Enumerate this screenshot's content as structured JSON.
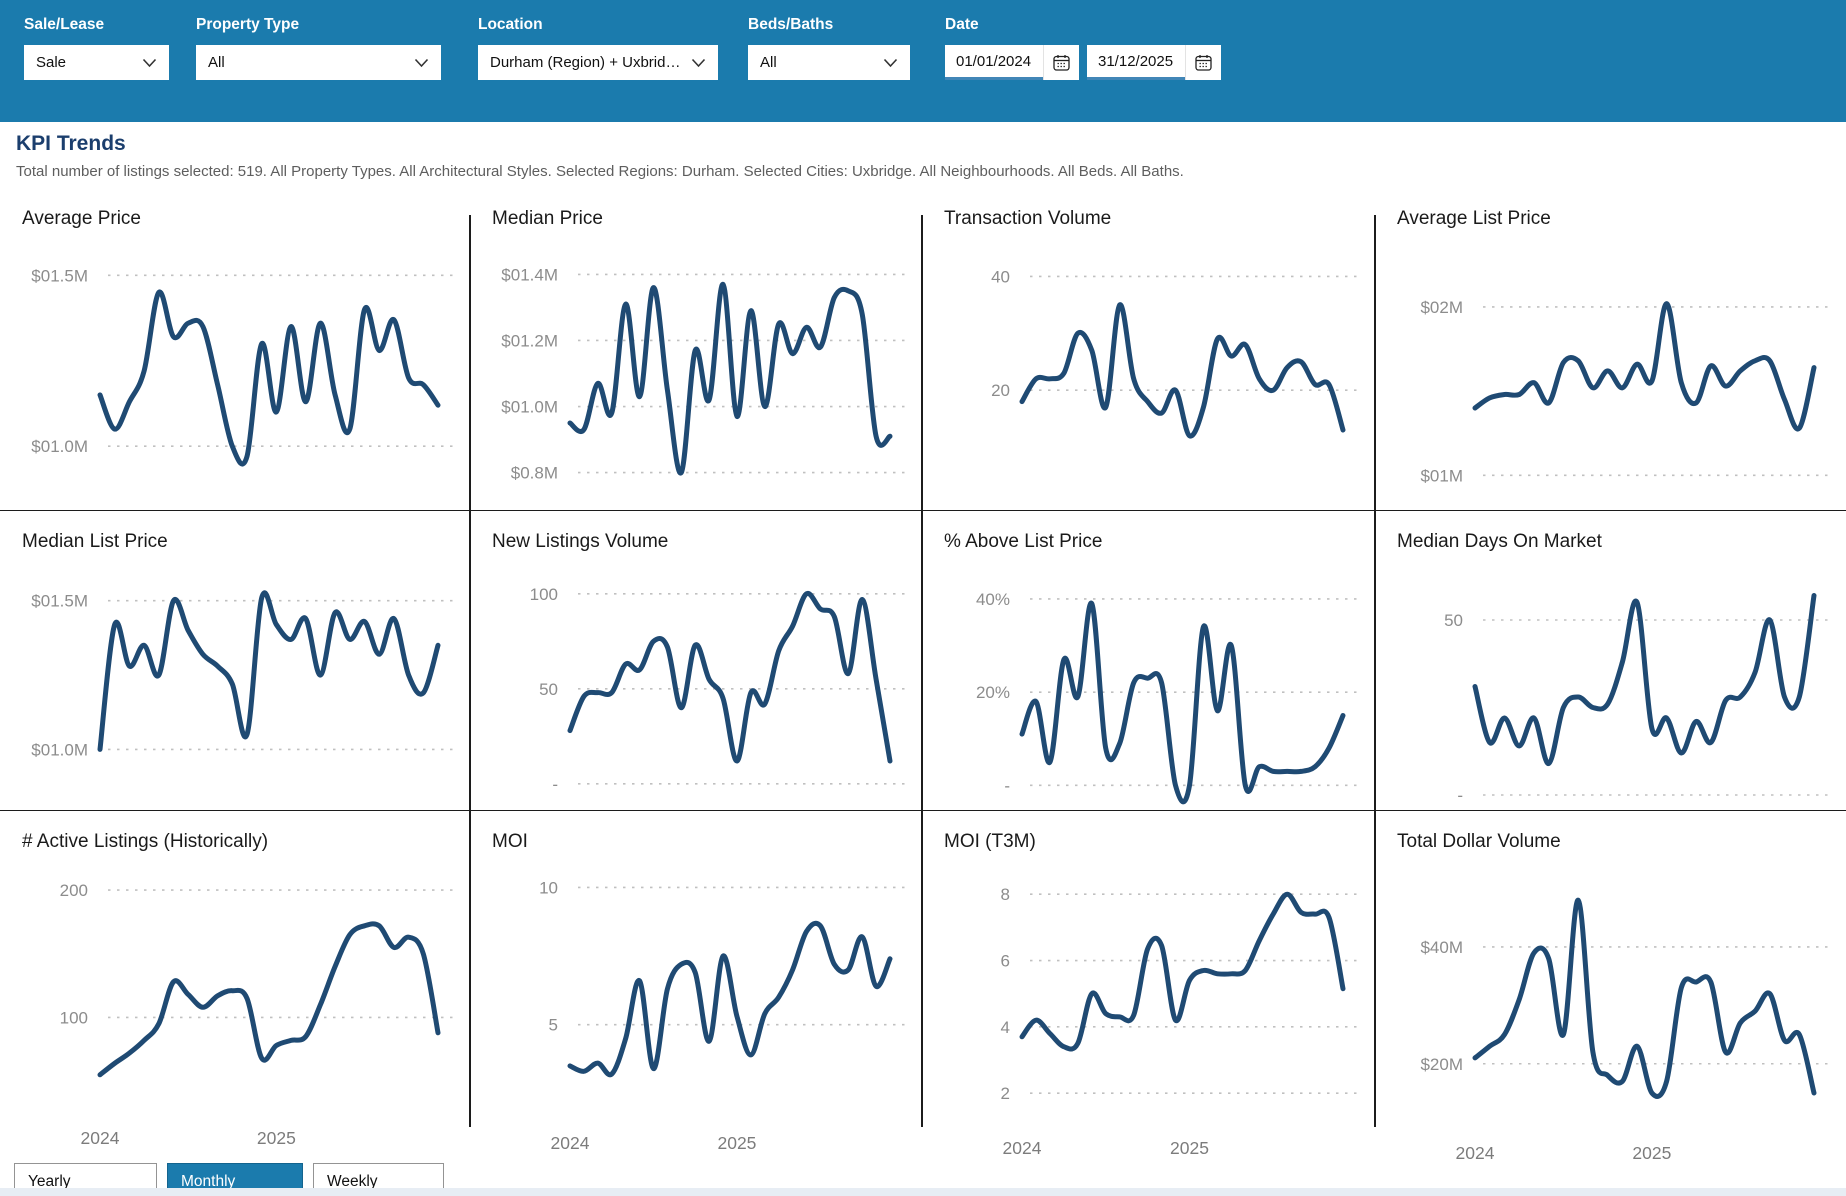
{
  "filters": {
    "sale_lease": {
      "label": "Sale/Lease",
      "value": "Sale"
    },
    "property_type": {
      "label": "Property Type",
      "value": "All"
    },
    "location": {
      "label": "Location",
      "value": "Durham (Region) + Uxbridg…"
    },
    "beds_baths": {
      "label": "Beds/Baths",
      "value": "All"
    },
    "date": {
      "label": "Date",
      "start": "01/01/2024",
      "end": "31/12/2025"
    }
  },
  "section": {
    "title": "KPI Trends",
    "subtitle": "Total number of listings selected: 519. All Property Types. All Architectural Styles. Selected Regions: Durham. Selected Cities: Uxbridge. All Neighbourhoods. All Beds. All Baths."
  },
  "period_toggle": {
    "options": [
      "Yearly",
      "Monthly",
      "Weekly"
    ],
    "selected": "Monthly"
  },
  "colors": {
    "header_bg": "#1b7bad",
    "accent": "#1b7bad",
    "line": "#1f4a73",
    "title_text": "#1b3e6d",
    "grid_dot": "#c0c0c0",
    "tick_text": "#8c8c8c",
    "axis_text": "#7c7c7c"
  },
  "chart_data": [
    {
      "type": "line",
      "title": "Average Price",
      "frequency": "monthly",
      "x_start": "2024-01",
      "x_end": "2025-12",
      "ylim": [
        0.86,
        1.58
      ],
      "yticks": [
        {
          "label": "$01.5M",
          "value": 1.5
        },
        {
          "label": "$01.0M",
          "value": 1.0
        }
      ],
      "values": [
        1.15,
        1.05,
        1.13,
        1.22,
        1.45,
        1.32,
        1.36,
        1.35,
        1.18,
        1.0,
        0.97,
        1.3,
        1.1,
        1.35,
        1.13,
        1.36,
        1.15,
        1.05,
        1.4,
        1.28,
        1.37,
        1.2,
        1.18,
        1.12
      ]
    },
    {
      "type": "line",
      "title": "Median Price",
      "frequency": "monthly",
      "x_start": "2024-01",
      "x_end": "2025-12",
      "ylim": [
        0.72,
        1.48
      ],
      "yticks": [
        {
          "label": "$01.4M",
          "value": 1.4
        },
        {
          "label": "$01.2M",
          "value": 1.2
        },
        {
          "label": "$01.0M",
          "value": 1.0
        },
        {
          "label": "$0.8M",
          "value": 0.8
        }
      ],
      "values": [
        0.95,
        0.93,
        1.07,
        0.98,
        1.31,
        1.03,
        1.36,
        1.05,
        0.8,
        1.17,
        1.02,
        1.37,
        0.97,
        1.29,
        1.0,
        1.25,
        1.16,
        1.24,
        1.18,
        1.33,
        1.35,
        1.28,
        0.91,
        0.91
      ]
    },
    {
      "type": "line",
      "title": "Transaction Volume",
      "frequency": "monthly",
      "x_start": "2024-01",
      "x_end": "2025-12",
      "ylim": [
        0,
        45
      ],
      "yticks": [
        {
          "label": "40",
          "value": 40
        },
        {
          "label": "20",
          "value": 20
        }
      ],
      "values": [
        18,
        22,
        22,
        23,
        30,
        27,
        17,
        35,
        22,
        18,
        16,
        20,
        12,
        17,
        29,
        26,
        28,
        22,
        20,
        24,
        25,
        21,
        21,
        13
      ]
    },
    {
      "type": "line",
      "title": "Average List Price",
      "frequency": "monthly",
      "x_start": "2024-01",
      "x_end": "2025-12",
      "ylim": [
        0.8,
        2.35
      ],
      "yticks": [
        {
          "label": "$02M",
          "value": 2
        },
        {
          "label": "$01M",
          "value": 1
        }
      ],
      "values": [
        1.4,
        1.46,
        1.48,
        1.48,
        1.55,
        1.43,
        1.67,
        1.68,
        1.52,
        1.62,
        1.52,
        1.66,
        1.56,
        2.02,
        1.55,
        1.43,
        1.65,
        1.53,
        1.62,
        1.68,
        1.68,
        1.45,
        1.28,
        1.64
      ]
    },
    {
      "type": "line",
      "title": "Median List Price",
      "frequency": "monthly",
      "x_start": "2024-01",
      "x_end": "2025-12",
      "ylim": [
        0.85,
        1.6
      ],
      "yticks": [
        {
          "label": "$01.5M",
          "value": 1.5
        },
        {
          "label": "$01.0M",
          "value": 1.0
        }
      ],
      "values": [
        1.0,
        1.42,
        1.28,
        1.35,
        1.25,
        1.5,
        1.4,
        1.32,
        1.28,
        1.22,
        1.05,
        1.51,
        1.42,
        1.37,
        1.44,
        1.25,
        1.46,
        1.37,
        1.43,
        1.32,
        1.44,
        1.25,
        1.19,
        1.35
      ]
    },
    {
      "type": "line",
      "title": "New Listings Volume",
      "frequency": "monthly",
      "x_start": "2024-01",
      "x_end": "2025-12",
      "ylim": [
        -8,
        112
      ],
      "yticks": [
        {
          "label": "100",
          "value": 100
        },
        {
          "label": "50",
          "value": 50
        },
        {
          "label": "-",
          "value": 0
        }
      ],
      "values": [
        28,
        46,
        48,
        48,
        63,
        60,
        75,
        72,
        40,
        73,
        55,
        45,
        12,
        48,
        42,
        70,
        83,
        100,
        92,
        88,
        58,
        97,
        55,
        12
      ]
    },
    {
      "type": "line",
      "title": "% Above List Price",
      "frequency": "monthly",
      "x_start": "2024-01",
      "x_end": "2025-12",
      "ylim": [
        -4,
        46
      ],
      "yticks": [
        {
          "label": "40%",
          "value": 40
        },
        {
          "label": "20%",
          "value": 20
        },
        {
          "label": "-",
          "value": 0
        }
      ],
      "values": [
        11,
        18,
        5,
        27,
        19,
        39,
        8,
        9,
        22,
        23,
        22,
        0,
        0,
        34,
        16,
        30,
        0,
        4,
        3,
        3,
        3,
        4,
        8,
        15
      ]
    },
    {
      "type": "line",
      "title": "Median Days On Market",
      "frequency": "monthly",
      "x_start": "2024-01",
      "x_end": "2025-12",
      "ylim": [
        -4,
        64
      ],
      "yticks": [
        {
          "label": "50",
          "value": 50
        },
        {
          "label": "-",
          "value": 0
        }
      ],
      "values": [
        31,
        15,
        22,
        14,
        22,
        9,
        25,
        28,
        25,
        26,
        38,
        55,
        19,
        22,
        12,
        21,
        15,
        27,
        28,
        35,
        50,
        28,
        28,
        57
      ]
    },
    {
      "type": "line",
      "title": "# Active Listings (Historically)",
      "frequency": "monthly",
      "x_start": "2024-01",
      "x_end": "2025-12",
      "ylim": [
        25,
        215
      ],
      "yticks": [
        {
          "label": "200",
          "value": 200
        },
        {
          "label": "100",
          "value": 100
        }
      ],
      "x_labels": [
        {
          "label": "2024",
          "index": 0
        },
        {
          "label": "2025",
          "index": 12
        }
      ],
      "values": [
        55,
        64,
        72,
        82,
        95,
        128,
        118,
        108,
        117,
        121,
        115,
        68,
        78,
        82,
        85,
        110,
        140,
        165,
        172,
        172,
        155,
        163,
        150,
        88
      ]
    },
    {
      "type": "line",
      "title": "MOI",
      "frequency": "monthly",
      "x_start": "2024-01",
      "x_end": "2025-12",
      "ylim": [
        1.6,
        10.6
      ],
      "yticks": [
        {
          "label": "10",
          "value": 10
        },
        {
          "label": "5",
          "value": 5
        }
      ],
      "x_labels": [
        {
          "label": "2024",
          "index": 0
        },
        {
          "label": "2025",
          "index": 12
        }
      ],
      "values": [
        3.5,
        3.3,
        3.6,
        3.2,
        4.5,
        6.6,
        3.4,
        6.3,
        7.2,
        6.9,
        4.4,
        7.5,
        5.3,
        3.9,
        5.4,
        6.0,
        7.0,
        8.4,
        8.6,
        7.2,
        7.0,
        8.2,
        6.4,
        7.4
      ]
    },
    {
      "type": "line",
      "title": "MOI (T3M)",
      "frequency": "monthly",
      "x_start": "2024-01",
      "x_end": "2025-12",
      "ylim": [
        1.1,
        8.7
      ],
      "yticks": [
        {
          "label": "8",
          "value": 8
        },
        {
          "label": "6",
          "value": 6
        },
        {
          "label": "4",
          "value": 4
        },
        {
          "label": "2",
          "value": 2
        }
      ],
      "x_labels": [
        {
          "label": "2024",
          "index": 0
        },
        {
          "label": "2025",
          "index": 12
        }
      ],
      "values": [
        3.7,
        4.2,
        3.8,
        3.4,
        3.5,
        5.0,
        4.4,
        4.3,
        4.35,
        6.35,
        6.45,
        4.2,
        5.4,
        5.7,
        5.6,
        5.6,
        5.7,
        6.6,
        7.4,
        8.0,
        7.45,
        7.4,
        7.3,
        5.15
      ]
    },
    {
      "type": "line",
      "title": "Total Dollar Volume",
      "frequency": "monthly",
      "x_start": "2024-01",
      "x_end": "2025-12",
      "ylim": [
        9,
        53
      ],
      "yticks": [
        {
          "label": "$40M",
          "value": 40
        },
        {
          "label": "$20M",
          "value": 20
        }
      ],
      "x_labels": [
        {
          "label": "2024",
          "index": 0
        },
        {
          "label": "2025",
          "index": 12
        }
      ],
      "values": [
        21,
        23,
        25,
        31,
        39,
        38,
        25,
        48,
        22,
        18,
        17,
        23,
        15,
        17,
        33,
        34,
        34,
        22,
        27,
        29,
        32,
        24,
        25,
        15
      ]
    }
  ]
}
